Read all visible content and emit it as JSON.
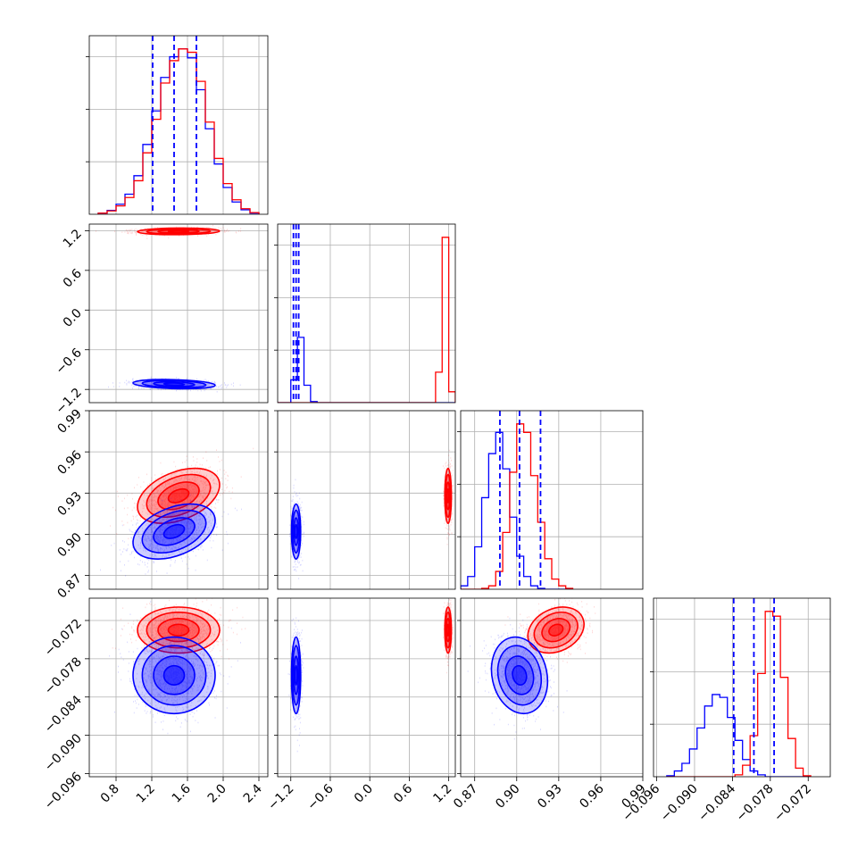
{
  "chart_data": {
    "type": "corner",
    "grid": true,
    "colors": {
      "series_a": "#ff0000",
      "series_b": "#0000ff"
    },
    "axes": [
      {
        "ticks": [
          0.8,
          1.2,
          1.6,
          2.0,
          2.4
        ],
        "labels": [
          "0.8",
          "1.2",
          "1.6",
          "2.0",
          "2.4"
        ],
        "range": [
          0.5,
          2.5
        ]
      },
      {
        "ticks": [
          -1.2,
          -0.6,
          0.0,
          0.6,
          1.2
        ],
        "labels": [
          "−1.2",
          "−0.6",
          "0.0",
          "0.6",
          "1.2"
        ],
        "range": [
          -1.4,
          1.3
        ]
      },
      {
        "ticks": [
          0.87,
          0.9,
          0.93,
          0.96,
          0.99
        ],
        "labels": [
          "0.87",
          "0.90",
          "0.93",
          "0.96",
          "0.99"
        ],
        "range": [
          0.86,
          0.99
        ]
      },
      {
        "ticks": [
          -0.096,
          -0.09,
          -0.084,
          -0.078,
          -0.072
        ],
        "labels": [
          "−0.096",
          "−0.090",
          "−0.084",
          "−0.078",
          "−0.072"
        ],
        "range": [
          -0.0965,
          -0.0685
        ]
      }
    ],
    "quantiles_b": [
      [
        1.21,
        1.45,
        1.7
      ],
      [
        -1.16,
        -1.12,
        -1.08
      ],
      [
        0.888,
        0.902,
        0.917
      ],
      [
        -0.0838,
        -0.0806,
        -0.0774
      ]
    ],
    "histograms": [
      {
        "bin_width": 0.1,
        "bin_start": 0.6,
        "series_a": [
          0.2,
          0.6,
          1.5,
          3.0,
          6.0,
          11.0,
          17.0,
          23.5,
          27.5,
          29.6,
          29.0,
          23.8,
          16.5,
          10.0,
          5.5,
          2.6,
          1.0,
          0.3
        ],
        "series_b": [
          0.2,
          0.7,
          1.8,
          3.6,
          6.9,
          12.5,
          18.5,
          24.5,
          28.2,
          29.6,
          28.0,
          22.3,
          15.3,
          9.0,
          4.8,
          2.2,
          0.8,
          0.2
        ]
      },
      {
        "bin_width": 0.1,
        "bin_start": -1.4,
        "series_a": [
          0,
          0,
          0,
          0,
          0,
          0,
          0,
          0,
          0,
          0,
          0,
          0,
          0,
          0,
          0,
          0,
          0,
          0,
          0,
          0,
          0,
          0,
          0,
          0,
          2.8,
          15.2,
          1.0
        ],
        "series_b": [
          0,
          0,
          2.1,
          6.0,
          1.6,
          0.1,
          0,
          0,
          0,
          0,
          0,
          0,
          0,
          0,
          0,
          0,
          0,
          0,
          0,
          0,
          0,
          0,
          0,
          0,
          0,
          0,
          0
        ]
      },
      {
        "bin_width": 0.005,
        "bin_start": 0.86,
        "series_a": [
          0,
          0,
          0,
          0.1,
          0.4,
          2.1,
          6.7,
          13.8,
          19.5,
          18.5,
          13.4,
          7.9,
          3.6,
          1.2,
          0.4,
          0.1
        ],
        "series_b": [
          0.4,
          1.5,
          5.0,
          10.8,
          16.0,
          18.5,
          14.2,
          8.5,
          3.9,
          1.5,
          0.4,
          0.1,
          0,
          0,
          0,
          0
        ]
      },
      {
        "bin_width": 0.0012,
        "bin_start": -0.0944,
        "series_a": [
          0,
          0,
          0,
          0,
          0,
          0,
          0,
          0,
          0,
          0.2,
          1.2,
          4.3,
          10.8,
          17.3,
          16.8,
          10.4,
          4.0,
          0.9,
          0.1
        ],
        "series_b": [
          0.1,
          0.6,
          1.4,
          2.9,
          5.1,
          7.4,
          8.6,
          8.3,
          6.2,
          3.8,
          1.8,
          0.6,
          0.2,
          0,
          0,
          0,
          0,
          0,
          0
        ]
      }
    ],
    "scatter_series": [
      {
        "name": "",
        "color": "#ff0000",
        "mean": [
          1.5,
          1.19,
          0.928,
          -0.0735
        ],
        "std": [
          0.23,
          0.025,
          0.01,
          0.0018
        ]
      },
      {
        "name": "",
        "color": "#0000ff",
        "mean": [
          1.45,
          -1.12,
          0.902,
          -0.0806
        ],
        "std": [
          0.23,
          0.035,
          0.01,
          0.003
        ]
      }
    ]
  }
}
